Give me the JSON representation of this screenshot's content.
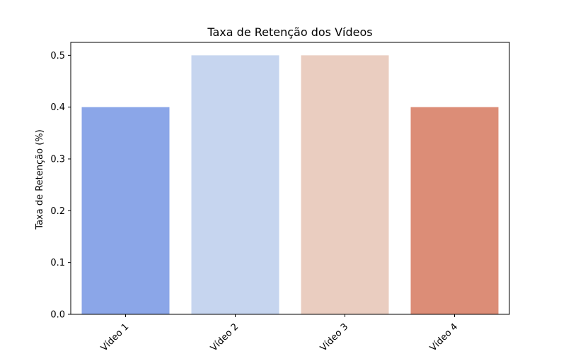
{
  "chart_data": {
    "type": "bar",
    "title": "Taxa de Retenção dos Vídeos",
    "xlabel": "",
    "ylabel": "Taxa de Retenção (%)",
    "categories": [
      "Vídeo 1",
      "Vídeo 2",
      "Vídeo 3",
      "Vídeo 4"
    ],
    "values": [
      0.4,
      0.5,
      0.5,
      0.4
    ],
    "colors": [
      "#8ba6e8",
      "#c6d5ef",
      "#eacdc0",
      "#dc8d77"
    ],
    "ylim": [
      0,
      0.5
    ],
    "yticks": [
      0.0,
      0.1,
      0.2,
      0.3,
      0.4,
      0.5
    ],
    "ytick_labels": [
      "0.0",
      "0.1",
      "0.2",
      "0.3",
      "0.4",
      "0.5"
    ],
    "xtick_rotation_deg": 45,
    "grid": false,
    "legend": "none"
  }
}
